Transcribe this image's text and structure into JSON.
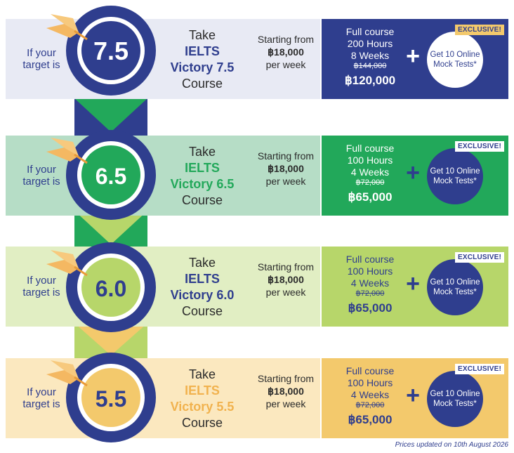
{
  "brand": {
    "navy": "#2f3e8e",
    "green": "#22a85a",
    "lime": "#b7d66a",
    "yellow": "#f3c96c"
  },
  "rows": [
    {
      "score": "7.5",
      "target_label": "If your target is",
      "take": "Take",
      "ielts": "IELTS",
      "victory": "Victory 7.5",
      "course": "Course",
      "starting": "Starting from",
      "price_week": "฿18,000",
      "per_week": "per week",
      "full_course": "Full course",
      "hours": "200 Hours",
      "weeks": "8 Weeks",
      "old_price": "฿144,000",
      "new_price": "฿120,000",
      "plus": "+",
      "mock": "Get 10 Online Mock Tests*",
      "exclusive": "EXCLUSIVE!"
    },
    {
      "score": "6.5",
      "target_label": "If your target is",
      "take": "Take",
      "ielts": "IELTS",
      "victory": "Victory 6.5",
      "course": "Course",
      "starting": "Starting from",
      "price_week": "฿18,000",
      "per_week": "per week",
      "full_course": "Full course",
      "hours": "100 Hours",
      "weeks": "4 Weeks",
      "old_price": "฿72,000",
      "new_price": "฿65,000",
      "plus": "+",
      "mock": "Get 10 Online Mock Tests*",
      "exclusive": "EXCLUSIVE!"
    },
    {
      "score": "6.0",
      "target_label": "If your target is",
      "take": "Take",
      "ielts": "IELTS",
      "victory": "Victory 6.0",
      "course": "Course",
      "starting": "Starting from",
      "price_week": "฿18,000",
      "per_week": "per week",
      "full_course": "Full course",
      "hours": "100 Hours",
      "weeks": "4 Weeks",
      "old_price": "฿72,000",
      "new_price": "฿65,000",
      "plus": "+",
      "mock": "Get 10 Online Mock Tests*",
      "exclusive": "EXCLUSIVE!"
    },
    {
      "score": "5.5",
      "target_label": "If your target is",
      "take": "Take",
      "ielts": "IELTS",
      "victory": "Victory 5.5",
      "course": "Course",
      "starting": "Starting from",
      "price_week": "฿18,000",
      "per_week": "per week",
      "full_course": "Full course",
      "hours": "100 Hours",
      "weeks": "4 Weeks",
      "old_price": "฿72,000",
      "new_price": "฿65,000",
      "plus": "+",
      "mock": "Get 10 Online Mock Tests*",
      "exclusive": "EXCLUSIVE!"
    }
  ],
  "footer": "Prices updated on 10th August 2026"
}
